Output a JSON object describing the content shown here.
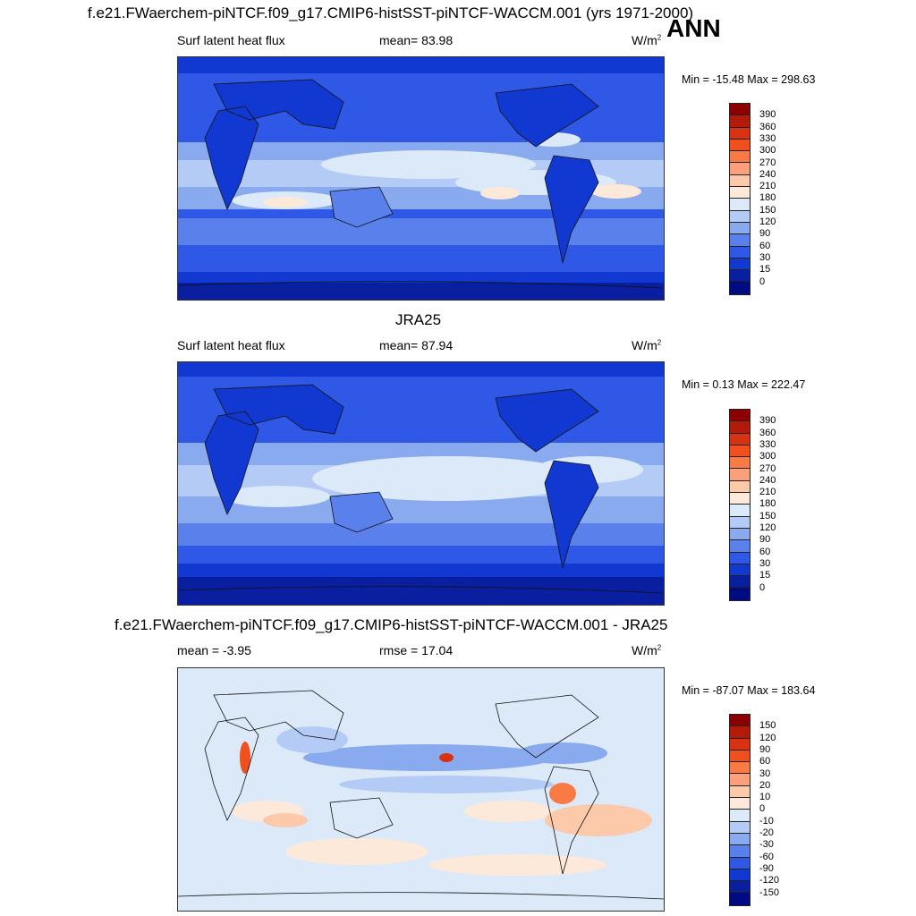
{
  "page": {
    "main_title": "f.e21.FWaerchem-piNTCF.f09_g17.CMIP6-histSST-piNTCF-WACCM.001 (yrs 1971-2000)",
    "season": "ANN"
  },
  "panels": [
    {
      "title": "",
      "left_label": "Surf latent heat flux",
      "center_label": "mean=  83.98",
      "units_base": "W/m",
      "units_exp": "2",
      "minmax": "Min = -15.48 Max = 298.63",
      "colorbar": {
        "labels": [
          "390",
          "360",
          "330",
          "300",
          "270",
          "240",
          "210",
          "180",
          "150",
          "120",
          "90",
          "60",
          "30",
          "15",
          "0"
        ],
        "colors": [
          "#8b0000",
          "#b21a0a",
          "#d93212",
          "#f0501e",
          "#fa7a46",
          "#fba07a",
          "#fcc9aa",
          "#fde9da",
          "#dce9f8",
          "#b4ccf5",
          "#8aaaf0",
          "#5a80eb",
          "#2f58e6",
          "#1238d2",
          "#0a1ea0",
          "#000a82"
        ]
      }
    },
    {
      "title": "JRA25",
      "left_label": "Surf latent heat flux",
      "center_label": "mean=  87.94",
      "units_base": "W/m",
      "units_exp": "2",
      "minmax": "Min =   0.13 Max = 222.47",
      "colorbar": {
        "labels": [
          "390",
          "360",
          "330",
          "300",
          "270",
          "240",
          "210",
          "180",
          "150",
          "120",
          "90",
          "60",
          "30",
          "15",
          "0"
        ],
        "colors": [
          "#8b0000",
          "#b21a0a",
          "#d93212",
          "#f0501e",
          "#fa7a46",
          "#fba07a",
          "#fcc9aa",
          "#fde9da",
          "#dce9f8",
          "#b4ccf5",
          "#8aaaf0",
          "#5a80eb",
          "#2f58e6",
          "#1238d2",
          "#0a1ea0",
          "#000a82"
        ]
      }
    },
    {
      "title": "f.e21.FWaerchem-piNTCF.f09_g17.CMIP6-histSST-piNTCF-WACCM.001 - JRA25",
      "left_label": "mean =  -3.95",
      "center_label": "rmse =  17.04",
      "units_base": "W/m",
      "units_exp": "2",
      "minmax": "Min = -87.07 Max = 183.64",
      "colorbar": {
        "labels": [
          "150",
          "120",
          "90",
          "60",
          "30",
          "20",
          "10",
          "0",
          "-10",
          "-20",
          "-30",
          "-60",
          "-90",
          "-120",
          "-150"
        ],
        "colors": [
          "#8b0000",
          "#b21a0a",
          "#d93212",
          "#f0501e",
          "#fa7a46",
          "#fba07a",
          "#fcc9aa",
          "#fde9da",
          "#dce9f8",
          "#b4ccf5",
          "#8aaaf0",
          "#5a80eb",
          "#2f58e6",
          "#1238d2",
          "#0a1ea0",
          "#000a82"
        ]
      }
    }
  ]
}
